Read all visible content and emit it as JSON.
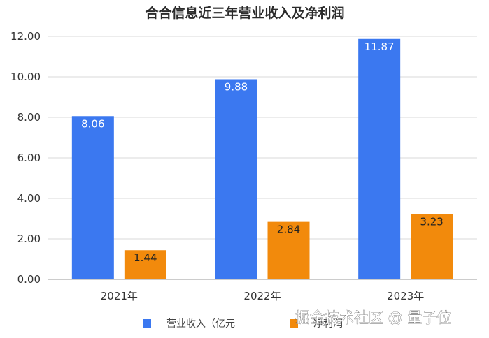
{
  "chart_data": {
    "type": "bar",
    "title": "合合信息近三年营业收入及净利润",
    "categories": [
      "2021年",
      "2022年",
      "2023年"
    ],
    "series": [
      {
        "name": "营业收入（亿元",
        "values": [
          8.06,
          9.88,
          11.87
        ],
        "labels": [
          "8.06",
          "9.88",
          "11.87"
        ],
        "color": "#3b78f0",
        "label_color": "#ffffff"
      },
      {
        "name": "净利润",
        "values": [
          1.44,
          2.84,
          3.23
        ],
        "labels": [
          "1.44",
          "2.84",
          "3.23"
        ],
        "color": "#f28a0c",
        "label_color": "#222222"
      }
    ],
    "ylim": [
      0,
      12
    ],
    "yticks": [
      "0.00",
      "2.00",
      "4.00",
      "6.00",
      "8.00",
      "10.00",
      "12.00"
    ],
    "grid": true,
    "legend_position": "bottom"
  },
  "watermark": "掘金技术社区 @ 量子位"
}
